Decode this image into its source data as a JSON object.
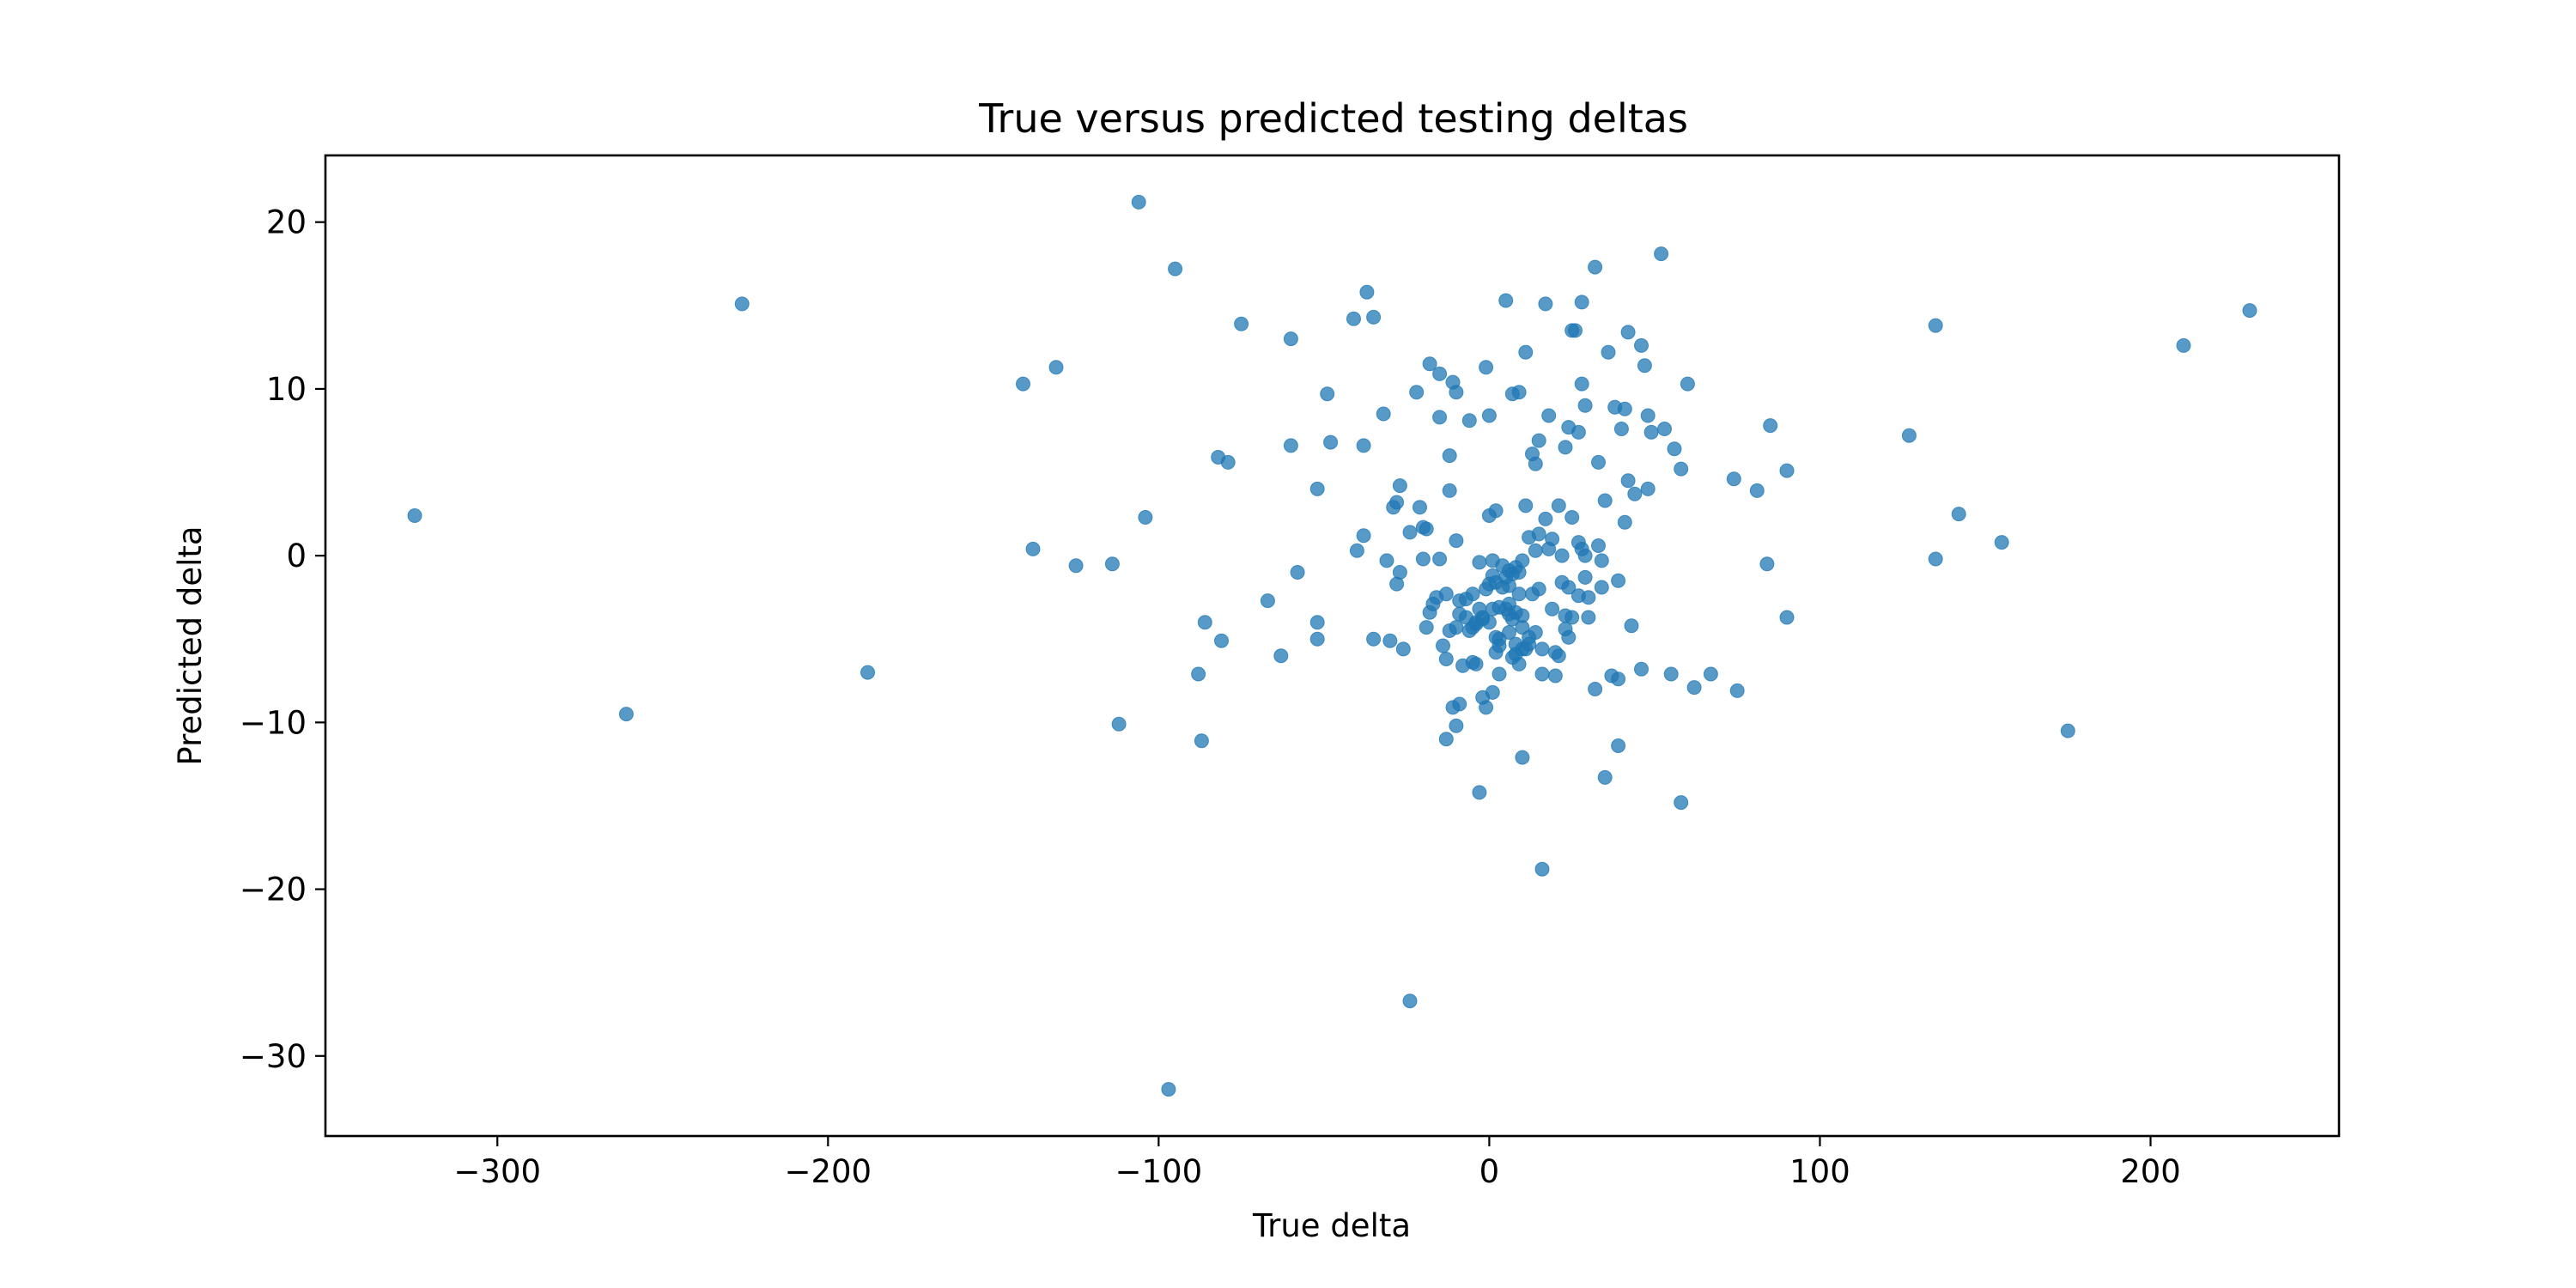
{
  "chart_data": {
    "type": "scatter",
    "title": "True versus predicted testing deltas",
    "xlabel": "True delta",
    "ylabel": "Predicted delta",
    "xlim": [
      -352,
      257
    ],
    "ylim": [
      -34.8,
      24
    ],
    "xticks": [
      -300,
      -200,
      -100,
      0,
      100,
      200
    ],
    "yticks": [
      -30,
      -20,
      -10,
      0,
      10,
      20
    ],
    "xtick_labels": [
      "−300",
      "−200",
      "−100",
      "0",
      "100",
      "200"
    ],
    "ytick_labels": [
      "−30",
      "−20",
      "−10",
      "0",
      "10",
      "20"
    ],
    "grid": false,
    "marker_color": "#1f77b4",
    "marker_opacity": 0.75,
    "points": [
      [
        -325,
        2.4
      ],
      [
        -261,
        -9.5
      ],
      [
        -226,
        15.1
      ],
      [
        -188,
        -7.0
      ],
      [
        -141,
        10.3
      ],
      [
        -138,
        0.4
      ],
      [
        -131,
        11.3
      ],
      [
        -125,
        -0.6
      ],
      [
        -114,
        -0.5
      ],
      [
        -112,
        -10.1
      ],
      [
        -106,
        21.2
      ],
      [
        -104,
        2.3
      ],
      [
        -97,
        -32.0
      ],
      [
        -95,
        17.2
      ],
      [
        -88,
        -7.1
      ],
      [
        -87,
        -11.1
      ],
      [
        -86,
        -4.0
      ],
      [
        -82,
        5.9
      ],
      [
        -81,
        -5.1
      ],
      [
        -79,
        5.6
      ],
      [
        -75,
        13.9
      ],
      [
        -67,
        -2.7
      ],
      [
        -63,
        -6.0
      ],
      [
        -60,
        13.0
      ],
      [
        -60,
        6.6
      ],
      [
        -58,
        -1.0
      ],
      [
        -52,
        4.0
      ],
      [
        -52,
        -4.0
      ],
      [
        -52,
        -5.0
      ],
      [
        -49,
        9.7
      ],
      [
        -48,
        6.8
      ],
      [
        -41,
        14.2
      ],
      [
        -40,
        0.3
      ],
      [
        -38,
        1.2
      ],
      [
        -38,
        6.6
      ],
      [
        -37,
        15.8
      ],
      [
        -35,
        -5.0
      ],
      [
        -35,
        14.3
      ],
      [
        -32,
        8.5
      ],
      [
        -31,
        -0.3
      ],
      [
        -30,
        -5.1
      ],
      [
        -29,
        2.9
      ],
      [
        -28,
        3.2
      ],
      [
        -28,
        -1.7
      ],
      [
        -27,
        4.2
      ],
      [
        -27,
        -1.0
      ],
      [
        -26,
        -5.6
      ],
      [
        -24,
        -26.7
      ],
      [
        -24,
        1.4
      ],
      [
        -22,
        9.8
      ],
      [
        -21,
        2.9
      ],
      [
        -20,
        -0.2
      ],
      [
        -20,
        1.7
      ],
      [
        -19,
        -4.3
      ],
      [
        -19,
        1.6
      ],
      [
        -18,
        11.5
      ],
      [
        -18,
        -3.4
      ],
      [
        -17,
        -2.9
      ],
      [
        -16,
        -2.5
      ],
      [
        -15,
        8.3
      ],
      [
        -15,
        -0.2
      ],
      [
        -15,
        10.9
      ],
      [
        -14,
        -5.4
      ],
      [
        -13,
        -2.3
      ],
      [
        -13,
        -6.2
      ],
      [
        -13,
        -11.0
      ],
      [
        -12,
        3.9
      ],
      [
        -12,
        6.0
      ],
      [
        -12,
        -4.5
      ],
      [
        -11,
        10.4
      ],
      [
        -11,
        -9.1
      ],
      [
        -10,
        9.8
      ],
      [
        -10,
        -10.2
      ],
      [
        -10,
        -4.3
      ],
      [
        -10,
        0.9
      ],
      [
        -9,
        -2.7
      ],
      [
        -9,
        -3.5
      ],
      [
        -9,
        -8.9
      ],
      [
        -8,
        -6.6
      ],
      [
        -7,
        -2.6
      ],
      [
        -7,
        -3.7
      ],
      [
        -6,
        8.1
      ],
      [
        -6,
        -4.5
      ],
      [
        -5,
        -4.3
      ],
      [
        -5,
        -6.4
      ],
      [
        -5,
        -2.3
      ],
      [
        -4,
        -4.0
      ],
      [
        -4,
        -4.1
      ],
      [
        -4,
        -6.5
      ],
      [
        -3,
        -0.4
      ],
      [
        -3,
        -3.2
      ],
      [
        -3,
        -14.2
      ],
      [
        -2,
        -3.8
      ],
      [
        -2,
        -3.7
      ],
      [
        -2,
        -8.5
      ],
      [
        -1,
        11.3
      ],
      [
        -1,
        -2.0
      ],
      [
        -1,
        -9.1
      ],
      [
        0,
        -1.7
      ],
      [
        0,
        -4.0
      ],
      [
        0,
        8.4
      ],
      [
        0,
        2.4
      ],
      [
        1,
        -0.3
      ],
      [
        1,
        -3.2
      ],
      [
        1,
        -8.2
      ],
      [
        1,
        -1.2
      ],
      [
        2,
        -4.9
      ],
      [
        2,
        -5.8
      ],
      [
        2,
        -1.6
      ],
      [
        2,
        2.7
      ],
      [
        3,
        -3.1
      ],
      [
        3,
        -5.4
      ],
      [
        3,
        -7.1
      ],
      [
        3,
        -5.0
      ],
      [
        4,
        -1.9
      ],
      [
        4,
        -0.6
      ],
      [
        5,
        -3.2
      ],
      [
        5,
        -1.3
      ],
      [
        5,
        15.3
      ],
      [
        6,
        -4.6
      ],
      [
        6,
        -3.5
      ],
      [
        6,
        -2.9
      ],
      [
        6,
        -1.8
      ],
      [
        6,
        -0.9
      ],
      [
        7,
        9.7
      ],
      [
        7,
        -6.1
      ],
      [
        7,
        -3.8
      ],
      [
        7,
        -1.1
      ],
      [
        8,
        -5.9
      ],
      [
        8,
        -3.4
      ],
      [
        8,
        -5.3
      ],
      [
        8,
        -0.7
      ],
      [
        9,
        9.8
      ],
      [
        9,
        -6.5
      ],
      [
        9,
        -1.0
      ],
      [
        9,
        -2.3
      ],
      [
        10,
        -3.6
      ],
      [
        10,
        -5.6
      ],
      [
        10,
        -4.3
      ],
      [
        10,
        -12.1
      ],
      [
        10,
        -0.3
      ],
      [
        11,
        -5.6
      ],
      [
        11,
        3.0
      ],
      [
        11,
        12.2
      ],
      [
        12,
        1.1
      ],
      [
        12,
        -5.3
      ],
      [
        12,
        -4.9
      ],
      [
        13,
        6.1
      ],
      [
        13,
        -2.3
      ],
      [
        14,
        -4.6
      ],
      [
        14,
        5.5
      ],
      [
        14,
        0.3
      ],
      [
        15,
        6.9
      ],
      [
        15,
        -2.0
      ],
      [
        15,
        1.3
      ],
      [
        16,
        -7.1
      ],
      [
        16,
        -18.8
      ],
      [
        16,
        -5.6
      ],
      [
        17,
        15.1
      ],
      [
        17,
        2.2
      ],
      [
        18,
        0.4
      ],
      [
        18,
        8.4
      ],
      [
        19,
        1.0
      ],
      [
        19,
        -3.2
      ],
      [
        20,
        -5.8
      ],
      [
        20,
        -7.2
      ],
      [
        21,
        3.0
      ],
      [
        21,
        -6.0
      ],
      [
        22,
        -1.6
      ],
      [
        22,
        0.0
      ],
      [
        23,
        -4.4
      ],
      [
        23,
        -3.6
      ],
      [
        23,
        6.5
      ],
      [
        24,
        -4.9
      ],
      [
        24,
        -1.9
      ],
      [
        24,
        7.7
      ],
      [
        25,
        2.3
      ],
      [
        25,
        -3.7
      ],
      [
        25,
        13.5
      ],
      [
        26,
        13.5
      ],
      [
        27,
        -2.4
      ],
      [
        27,
        0.8
      ],
      [
        27,
        7.4
      ],
      [
        28,
        0.4
      ],
      [
        28,
        15.2
      ],
      [
        28,
        10.3
      ],
      [
        29,
        9.0
      ],
      [
        29,
        0.0
      ],
      [
        29,
        -1.3
      ],
      [
        30,
        -3.7
      ],
      [
        30,
        -2.5
      ],
      [
        32,
        17.3
      ],
      [
        32,
        -8.0
      ],
      [
        33,
        5.6
      ],
      [
        33,
        0.6
      ],
      [
        34,
        -1.9
      ],
      [
        34,
        -0.3
      ],
      [
        35,
        3.3
      ],
      [
        35,
        -13.3
      ],
      [
        36,
        12.2
      ],
      [
        37,
        -7.2
      ],
      [
        38,
        8.9
      ],
      [
        39,
        -7.4
      ],
      [
        39,
        -11.4
      ],
      [
        39,
        -1.5
      ],
      [
        40,
        7.6
      ],
      [
        41,
        8.8
      ],
      [
        41,
        2.0
      ],
      [
        42,
        13.4
      ],
      [
        42,
        4.5
      ],
      [
        43,
        -4.2
      ],
      [
        44,
        3.7
      ],
      [
        46,
        -6.8
      ],
      [
        46,
        12.6
      ],
      [
        47,
        11.4
      ],
      [
        48,
        8.4
      ],
      [
        48,
        4.0
      ],
      [
        49,
        7.4
      ],
      [
        52,
        18.1
      ],
      [
        53,
        7.6
      ],
      [
        55,
        -7.1
      ],
      [
        56,
        6.4
      ],
      [
        58,
        -14.8
      ],
      [
        58,
        5.2
      ],
      [
        60,
        10.3
      ],
      [
        62,
        -7.9
      ],
      [
        67,
        -7.1
      ],
      [
        74,
        4.6
      ],
      [
        75,
        -8.1
      ],
      [
        81,
        3.9
      ],
      [
        84,
        -0.5
      ],
      [
        85,
        7.8
      ],
      [
        90,
        -3.7
      ],
      [
        90,
        5.1
      ],
      [
        127,
        7.2
      ],
      [
        135,
        -0.2
      ],
      [
        135,
        13.8
      ],
      [
        142,
        2.5
      ],
      [
        155,
        0.8
      ],
      [
        175,
        -10.5
      ],
      [
        210,
        12.6
      ],
      [
        230,
        14.7
      ]
    ]
  }
}
